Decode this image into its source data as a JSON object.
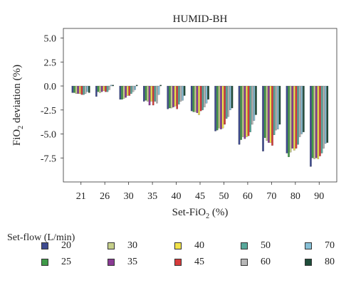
{
  "chart_data": {
    "type": "bar",
    "title": "HUMID-BH",
    "xlabel": "Set-FiO",
    "xlabel_sub": "2",
    "xlabel_suffix": " (%)",
    "ylabel": "FiO",
    "ylabel_sub": "2",
    "ylabel_suffix": " deviation (%)",
    "ylim": [
      -10,
      6
    ],
    "yticks": [
      5.0,
      2.5,
      0.0,
      -2.5,
      -5.0,
      -7.5
    ],
    "ytick_labels": [
      "5.0",
      "2.5",
      "0.0",
      "-2.5",
      "-5.0",
      "-7.5"
    ],
    "categories": [
      "21",
      "26",
      "30",
      "35",
      "40",
      "45",
      "50",
      "60",
      "70",
      "80",
      "90"
    ],
    "legend_title": "Set-flow (L/min)",
    "series": [
      {
        "name": "20",
        "color": "#3d4a8f",
        "values": [
          -0.7,
          -1.1,
          -1.4,
          -1.6,
          -2.4,
          -2.6,
          -4.7,
          -6.1,
          -6.8,
          -7.0,
          -8.4
        ]
      },
      {
        "name": "25",
        "color": "#3f9a48",
        "values": [
          -0.7,
          -0.6,
          -1.4,
          -1.5,
          -2.3,
          -2.7,
          -4.6,
          -5.6,
          -5.4,
          -7.4,
          -7.5
        ]
      },
      {
        "name": "30",
        "color": "#c5cf8a",
        "values": [
          -0.8,
          -0.7,
          -1.3,
          -1.6,
          -2.3,
          -2.7,
          -4.4,
          -5.3,
          -5.7,
          -6.9,
          -7.6
        ]
      },
      {
        "name": "35",
        "color": "#8a3a94",
        "values": [
          -0.8,
          -0.6,
          -1.2,
          -2.0,
          -2.2,
          -2.8,
          -4.5,
          -5.5,
          -5.9,
          -6.5,
          -7.5
        ]
      },
      {
        "name": "40",
        "color": "#f2e34a",
        "values": [
          -0.8,
          -0.5,
          -1.0,
          -1.6,
          -2.1,
          -3.0,
          -4.4,
          -5.3,
          -5.9,
          -6.7,
          -7.6
        ]
      },
      {
        "name": "45",
        "color": "#d63b3b",
        "values": [
          -0.9,
          -0.6,
          -1.0,
          -2.0,
          -2.4,
          -2.6,
          -4.0,
          -5.2,
          -6.2,
          -6.5,
          -7.3
        ]
      },
      {
        "name": "50",
        "color": "#58a89b",
        "values": [
          -0.9,
          -0.6,
          -0.8,
          -1.6,
          -1.9,
          -2.5,
          -3.4,
          -4.8,
          -5.1,
          -6.1,
          -7.0
        ]
      },
      {
        "name": "60",
        "color": "#b8b8b8",
        "values": [
          -0.8,
          -0.4,
          -0.6,
          -1.8,
          -1.6,
          -2.2,
          -3.2,
          -4.0,
          -4.6,
          -5.3,
          -6.5
        ]
      },
      {
        "name": "70",
        "color": "#86bfd6",
        "values": [
          -0.6,
          0.1,
          -0.4,
          -0.9,
          -1.5,
          -1.8,
          -2.5,
          -3.6,
          -4.5,
          -5.0,
          -6.0
        ]
      },
      {
        "name": "80",
        "color": "#1f4d3a",
        "values": [
          -0.7,
          0.1,
          0.1,
          0.1,
          -1.0,
          -1.4,
          -2.3,
          -3.0,
          -4.0,
          -4.8,
          -5.9
        ]
      }
    ]
  }
}
